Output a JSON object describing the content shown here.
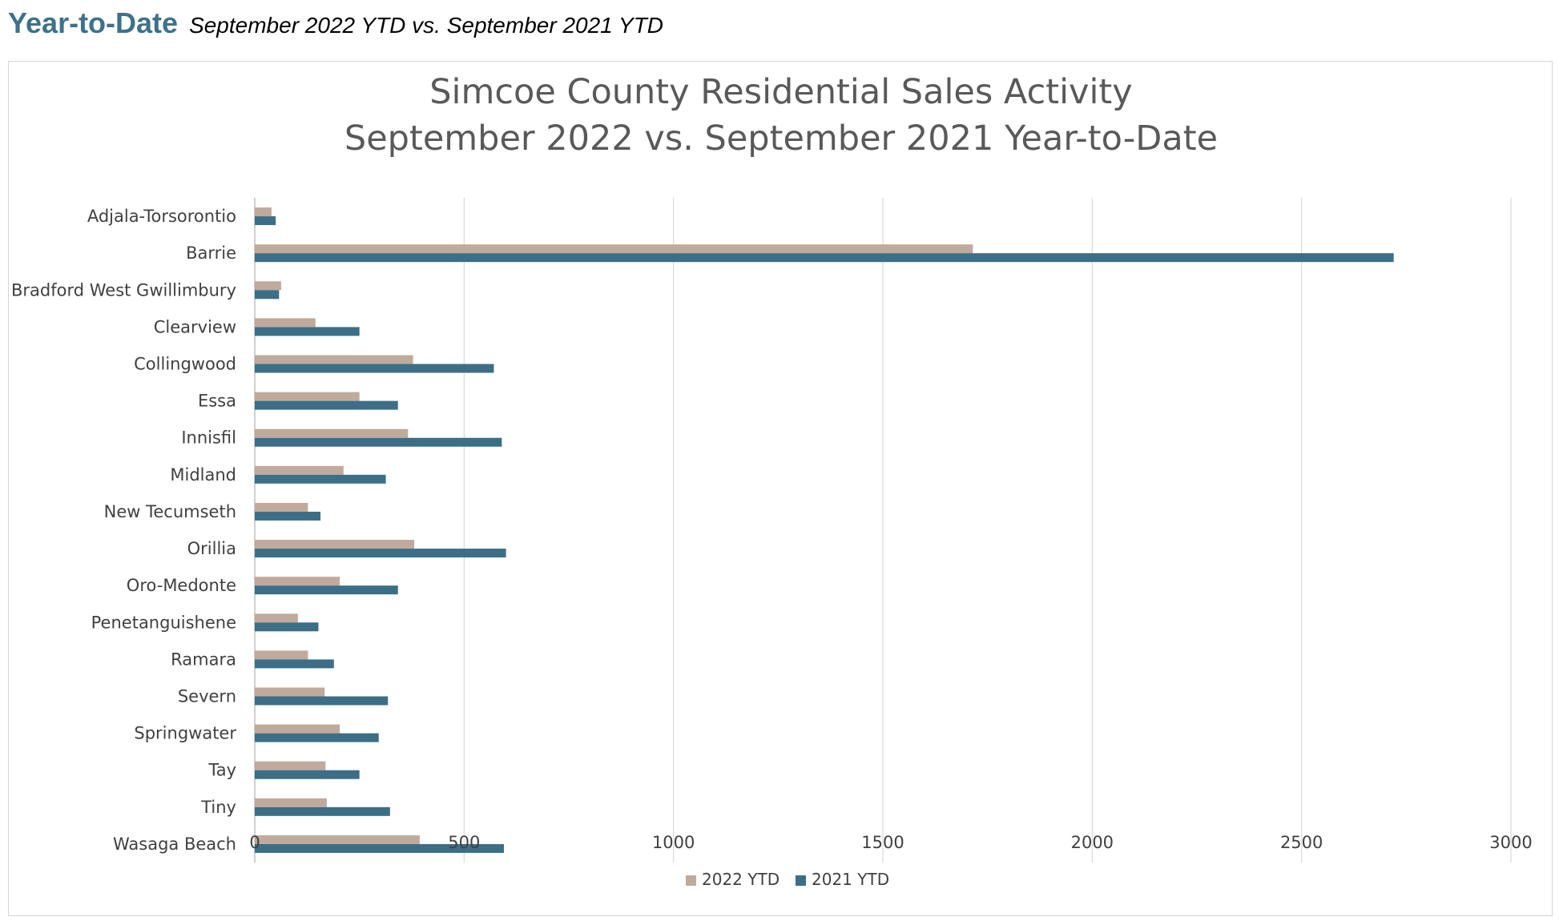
{
  "header": {
    "title": "Year-to-Date",
    "subtitle": "September 2022 YTD vs. September  2021 YTD"
  },
  "chart_data": {
    "type": "bar",
    "orientation": "horizontal",
    "title": [
      "Simcoe County Residential Sales Activity",
      "September 2022 vs. September 2021 Year-to-Date"
    ],
    "categories": [
      "Adjala-Torsorontio",
      "Barrie",
      "Bradford West Gwillimbury",
      "Clearview",
      "Collingwood",
      "Essa",
      "Innisfil",
      "Midland",
      "New Tecumseth",
      "Orillia",
      "Oro-Medonte",
      "Penetanguishene",
      "Ramara",
      "Severn",
      "Springwater",
      "Tay",
      "Tiny",
      "Wasaga Beach"
    ],
    "series": [
      {
        "name": "2022 YTD",
        "color": "#c0aa9c",
        "values": [
          40,
          1715,
          63,
          145,
          378,
          250,
          366,
          212,
          127,
          381,
          203,
          103,
          127,
          167,
          203,
          169,
          172,
          394
        ]
      },
      {
        "name": "2021 YTD",
        "color": "#3c6e87",
        "values": [
          50,
          2720,
          58,
          250,
          571,
          342,
          590,
          313,
          157,
          600,
          342,
          152,
          189,
          318,
          296,
          250,
          323,
          595
        ]
      }
    ],
    "xlim": [
      0,
      3000
    ],
    "xticks": [
      "0",
      "500",
      "1000",
      "1500",
      "2000",
      "2500",
      "3000"
    ],
    "grid": "vertical",
    "legend": "bottom"
  }
}
